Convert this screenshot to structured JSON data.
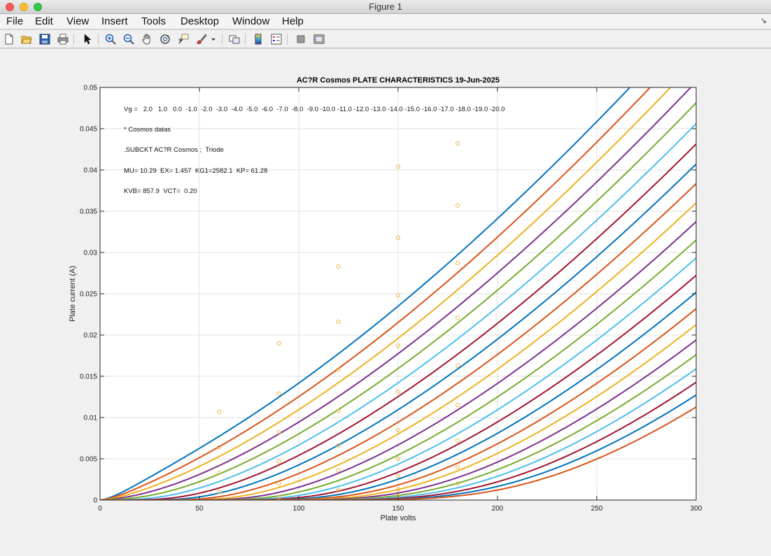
{
  "window": {
    "title": "Figure 1"
  },
  "menu": [
    "File",
    "Edit",
    "View",
    "Insert",
    "Tools",
    "Desktop",
    "Window",
    "Help"
  ],
  "toolbar_icons": [
    "new-figure-icon",
    "open-file-icon",
    "save-icon",
    "print-icon",
    "pointer-icon",
    "zoom-in-icon",
    "zoom-out-icon",
    "pan-icon",
    "rotate-3d-icon",
    "data-cursor-icon",
    "brush-icon",
    "brush-dropdown-icon",
    "link-plot-icon",
    "colorbar-icon",
    "legend-icon",
    "hide-plot-tools-icon",
    "show-plot-tools-icon"
  ],
  "chart_data": {
    "type": "line",
    "title": "AC?R Cosmos PLATE CHARACTERISTICS  19-Jun-2025",
    "xlabel": "Plate volts",
    "ylabel": "Plate current (A)",
    "xlim": [
      0,
      300
    ],
    "ylim": [
      0,
      0.05
    ],
    "xticks": [
      "0",
      "50",
      "100",
      "150",
      "200",
      "250",
      "300"
    ],
    "yticks": [
      "0",
      "0.005",
      "0.01",
      "0.015",
      "0.02",
      "0.025",
      "0.03",
      "0.035",
      "0.04",
      "0.045",
      "0.05"
    ],
    "grid": true,
    "annotations": [
      "Vg =   2.0   1.0   0.0  -1.0  -2.0  -3.0  -4.0  -5.0  -6.0  -7.0  -8.0  -9.0 -10.0 -11.0 -12.0 -13.0 -14.0 -15.0 -16.0 -17.0 -18.0 -19.0 -20.0",
      "* Cosmos datas",
      ".SUBCKT AC?R Cosmos ;  Triode",
      "MU= 10.29  EX= 1.457  KG1=2582.1  KP= 61.28",
      "KVB= 857.9  VCT=  0.20"
    ],
    "model": {
      "mu": 10.29,
      "ex": 1.457,
      "kg1": 2582.1,
      "kp": 61.28,
      "kvb": 857.9,
      "vct": 0.2
    },
    "grid_voltages": [
      2,
      1,
      0,
      -1,
      -2,
      -3,
      -4,
      -5,
      -6,
      -7,
      -8,
      -9,
      -10,
      -11,
      -12,
      -13,
      -14,
      -15,
      -16,
      -17,
      -18,
      -19,
      -20
    ],
    "series_colors": [
      "#0072bd",
      "#d95319",
      "#edb120",
      "#7e2f8e",
      "#77ac30",
      "#4dbeee",
      "#a2142f"
    ],
    "measured_points": [
      {
        "x": 60,
        "y": 0.0107
      },
      {
        "x": 60,
        "y": 0.0064
      },
      {
        "x": 60,
        "y": 0.0033
      },
      {
        "x": 60,
        "y": 0.001
      },
      {
        "x": 90,
        "y": 0.019
      },
      {
        "x": 90,
        "y": 0.0129
      },
      {
        "x": 90,
        "y": 0.0082
      },
      {
        "x": 90,
        "y": 0.0047
      },
      {
        "x": 90,
        "y": 0.002
      },
      {
        "x": 90,
        "y": 0.0003
      },
      {
        "x": 120,
        "y": 0.0283
      },
      {
        "x": 120,
        "y": 0.0216
      },
      {
        "x": 120,
        "y": 0.0158
      },
      {
        "x": 120,
        "y": 0.0108
      },
      {
        "x": 120,
        "y": 0.0066
      },
      {
        "x": 120,
        "y": 0.0036
      },
      {
        "x": 120,
        "y": 0.0012
      },
      {
        "x": 150,
        "y": 0.0404
      },
      {
        "x": 150,
        "y": 0.0318
      },
      {
        "x": 150,
        "y": 0.0248
      },
      {
        "x": 150,
        "y": 0.0187
      },
      {
        "x": 150,
        "y": 0.0131
      },
      {
        "x": 150,
        "y": 0.0085
      },
      {
        "x": 150,
        "y": 0.005
      },
      {
        "x": 150,
        "y": 0.0029
      },
      {
        "x": 150,
        "y": 0.0013
      },
      {
        "x": 150,
        "y": 0.0005
      },
      {
        "x": 180,
        "y": 0.0432
      },
      {
        "x": 180,
        "y": 0.0357
      },
      {
        "x": 180,
        "y": 0.0287
      },
      {
        "x": 180,
        "y": 0.0221
      },
      {
        "x": 180,
        "y": 0.0163
      },
      {
        "x": 180,
        "y": 0.0115
      },
      {
        "x": 180,
        "y": 0.0072
      },
      {
        "x": 180,
        "y": 0.004
      },
      {
        "x": 180,
        "y": 0.002
      }
    ],
    "marker_color": "#e8b84a"
  }
}
